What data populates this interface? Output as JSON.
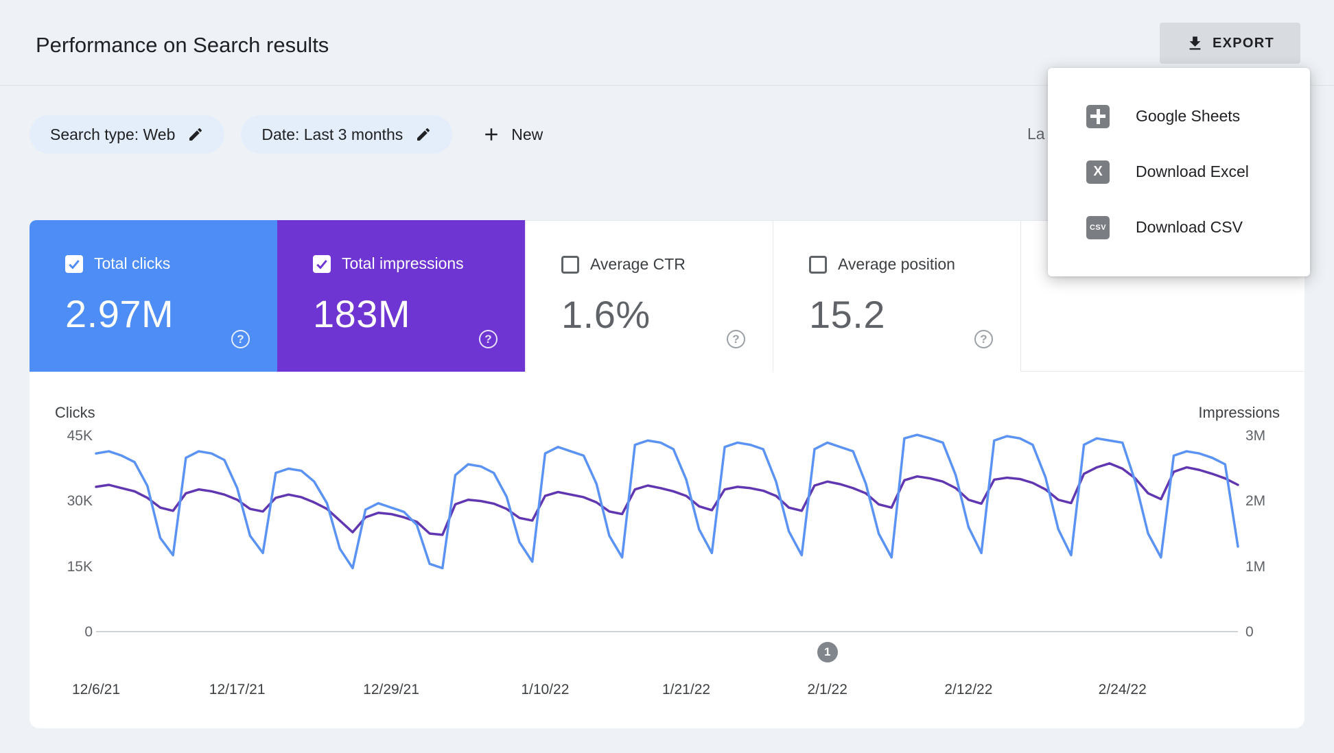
{
  "page": {
    "title": "Performance on Search results"
  },
  "header": {
    "export_label": "EXPORT"
  },
  "export_menu": {
    "items": [
      {
        "label": "Google Sheets",
        "icon": "google-sheets-icon",
        "glyph": ""
      },
      {
        "label": "Download Excel",
        "icon": "excel-icon",
        "glyph": "X"
      },
      {
        "label": "Download CSV",
        "icon": "csv-icon",
        "glyph": "CSV"
      }
    ]
  },
  "filters": {
    "search_type_chip": "Search type: Web",
    "date_chip": "Date: Last 3 months",
    "new_button": "New",
    "truncated_text": "La"
  },
  "metrics": {
    "cards": [
      {
        "label": "Total clicks",
        "value": "2.97M",
        "checked": true,
        "help": "?"
      },
      {
        "label": "Total impressions",
        "value": "183M",
        "checked": true,
        "help": "?"
      },
      {
        "label": "Average CTR",
        "value": "1.6%",
        "checked": false,
        "help": "?"
      },
      {
        "label": "Average position",
        "value": "15.2",
        "checked": false,
        "help": "?"
      }
    ]
  },
  "colors": {
    "clicks_blue": "#4e8df6",
    "impressions_purple": "#6e35d2",
    "line_blue": "#5b93f4",
    "line_purple": "#6036b1",
    "chip_bg": "#e4eefb",
    "export_button_bg": "#d8dbdf",
    "page_bg": "#eef1f5"
  },
  "chart_data": {
    "type": "line",
    "x_tick_labels": [
      "12/6/21",
      "12/17/21",
      "12/29/21",
      "1/10/22",
      "1/21/22",
      "2/1/22",
      "2/12/22",
      "2/24/22"
    ],
    "tick_indices": [
      0,
      11,
      23,
      35,
      46,
      57,
      68,
      80
    ],
    "axes": {
      "left": {
        "title": "Clicks",
        "units": "thousands",
        "max": 45,
        "ticks": [
          "0",
          "15K",
          "30K",
          "45K"
        ]
      },
      "right": {
        "title": "Impressions",
        "units": "millions",
        "max": 3,
        "ticks": [
          "0",
          "1M",
          "2M",
          "3M"
        ]
      }
    },
    "grid": false,
    "legend": "none",
    "pagination": {
      "label": "1",
      "at_index": 57
    },
    "series": [
      {
        "name": "Clicks",
        "axis": "left",
        "color": "#5b93f4",
        "values": [
          41,
          41.5,
          40.5,
          39,
          33.5,
          21.5,
          17.5,
          40,
          41.5,
          41,
          39.5,
          33,
          22,
          18,
          36.5,
          37.5,
          37,
          34.5,
          29.5,
          19,
          14.5,
          28,
          29.5,
          28.5,
          27.5,
          24.5,
          15.5,
          14.5,
          36,
          38.5,
          38,
          36.5,
          31,
          20.5,
          16,
          41,
          42.5,
          41.5,
          40.5,
          34,
          22,
          17,
          43,
          44,
          43.5,
          42,
          35,
          23.5,
          18,
          42.5,
          43.5,
          43,
          42,
          34.5,
          23,
          17.5,
          42,
          43.5,
          42.5,
          41.5,
          34,
          22.5,
          17,
          44.5,
          45.3,
          44.5,
          43.5,
          36,
          24,
          18,
          44,
          45,
          44.5,
          43,
          35.5,
          23.5,
          17.5,
          43,
          44.5,
          44,
          43.5,
          34.5,
          22.5,
          17,
          40.5,
          41.5,
          41,
          40,
          38.5,
          19.5
        ]
      },
      {
        "name": "Impressions",
        "axis": "right",
        "color": "#6036b1",
        "values": [
          2.22,
          2.25,
          2.2,
          2.15,
          2.05,
          1.9,
          1.85,
          2.12,
          2.18,
          2.15,
          2.1,
          2.02,
          1.88,
          1.84,
          2.05,
          2.1,
          2.06,
          1.98,
          1.88,
          1.7,
          1.52,
          1.75,
          1.82,
          1.8,
          1.75,
          1.68,
          1.5,
          1.48,
          1.95,
          2.02,
          2,
          1.96,
          1.88,
          1.74,
          1.7,
          2.08,
          2.14,
          2.1,
          2.06,
          1.98,
          1.84,
          1.8,
          2.18,
          2.24,
          2.2,
          2.15,
          2.08,
          1.92,
          1.86,
          2.18,
          2.22,
          2.2,
          2.16,
          2.08,
          1.9,
          1.85,
          2.24,
          2.3,
          2.26,
          2.2,
          2.12,
          1.95,
          1.9,
          2.32,
          2.38,
          2.35,
          2.3,
          2.2,
          2.02,
          1.96,
          2.33,
          2.36,
          2.34,
          2.28,
          2.18,
          2.02,
          1.97,
          2.42,
          2.52,
          2.58,
          2.5,
          2.35,
          2.12,
          2.03,
          2.45,
          2.52,
          2.48,
          2.42,
          2.35,
          2.25
        ]
      }
    ]
  }
}
